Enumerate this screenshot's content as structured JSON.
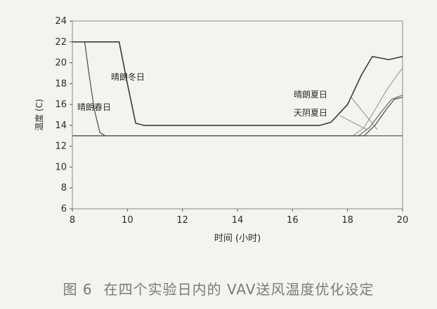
{
  "chart_data": {
    "type": "line",
    "xlabel": "时间 (小时)",
    "ylabel": "温度 (C)",
    "xlim": [
      8,
      20
    ],
    "ylim": [
      6,
      24
    ],
    "xticks": [
      8,
      10,
      12,
      14,
      16,
      18,
      20
    ],
    "yticks": [
      6,
      8,
      10,
      12,
      14,
      16,
      18,
      20,
      22,
      24
    ],
    "grid": false,
    "series": [
      {
        "name": "晴朗冬日",
        "x": [
          8,
          9.7,
          10.0,
          10.3,
          10.6,
          12,
          14,
          16,
          17,
          17.4,
          18.0,
          18.5,
          18.9,
          19.5,
          20
        ],
        "y": [
          22,
          22,
          18,
          14.2,
          14,
          14,
          14,
          14,
          14,
          14.3,
          16.0,
          18.8,
          20.6,
          20.3,
          20.6
        ]
      },
      {
        "name": "晴朗春日",
        "x": [
          8,
          8.45,
          8.6,
          8.8,
          9.0,
          9.2,
          10,
          12,
          14,
          16,
          18,
          20
        ],
        "y": [
          22,
          22,
          19,
          15.5,
          13.3,
          13,
          13,
          13,
          13,
          13,
          13,
          13
        ]
      },
      {
        "name": "晴朗夏日",
        "x": [
          8,
          12,
          16,
          18.2,
          18.6,
          19.0,
          19.4,
          19.8,
          20
        ],
        "y": [
          13,
          13,
          13,
          13,
          13.8,
          15.5,
          17.3,
          18.8,
          19.5
        ]
      },
      {
        "name": "天阴夏日",
        "x": [
          8,
          12,
          16,
          18.4,
          18.8,
          19.2,
          19.6,
          20
        ],
        "y": [
          13,
          13,
          13,
          13,
          13.8,
          15.2,
          16.5,
          16.9
        ]
      },
      {
        "name": "",
        "x": [
          8,
          12,
          16,
          18.6,
          19.0,
          19.4,
          19.7,
          20
        ],
        "y": [
          13,
          13,
          13,
          13,
          14.0,
          15.5,
          16.5,
          16.7
        ]
      }
    ],
    "annotations": [
      {
        "text": "晴朗冬日",
        "series": "晴朗冬日"
      },
      {
        "text": "晴朗春日",
        "series": "晴朗春日"
      },
      {
        "text": "晴朗夏日",
        "series": "晴朗夏日"
      },
      {
        "text": "天阴夏日",
        "series": "天阴夏日"
      }
    ]
  },
  "caption": {
    "figure_no": "图 6",
    "text": "在四个实验日内的 VAV送风温度优化设定"
  }
}
